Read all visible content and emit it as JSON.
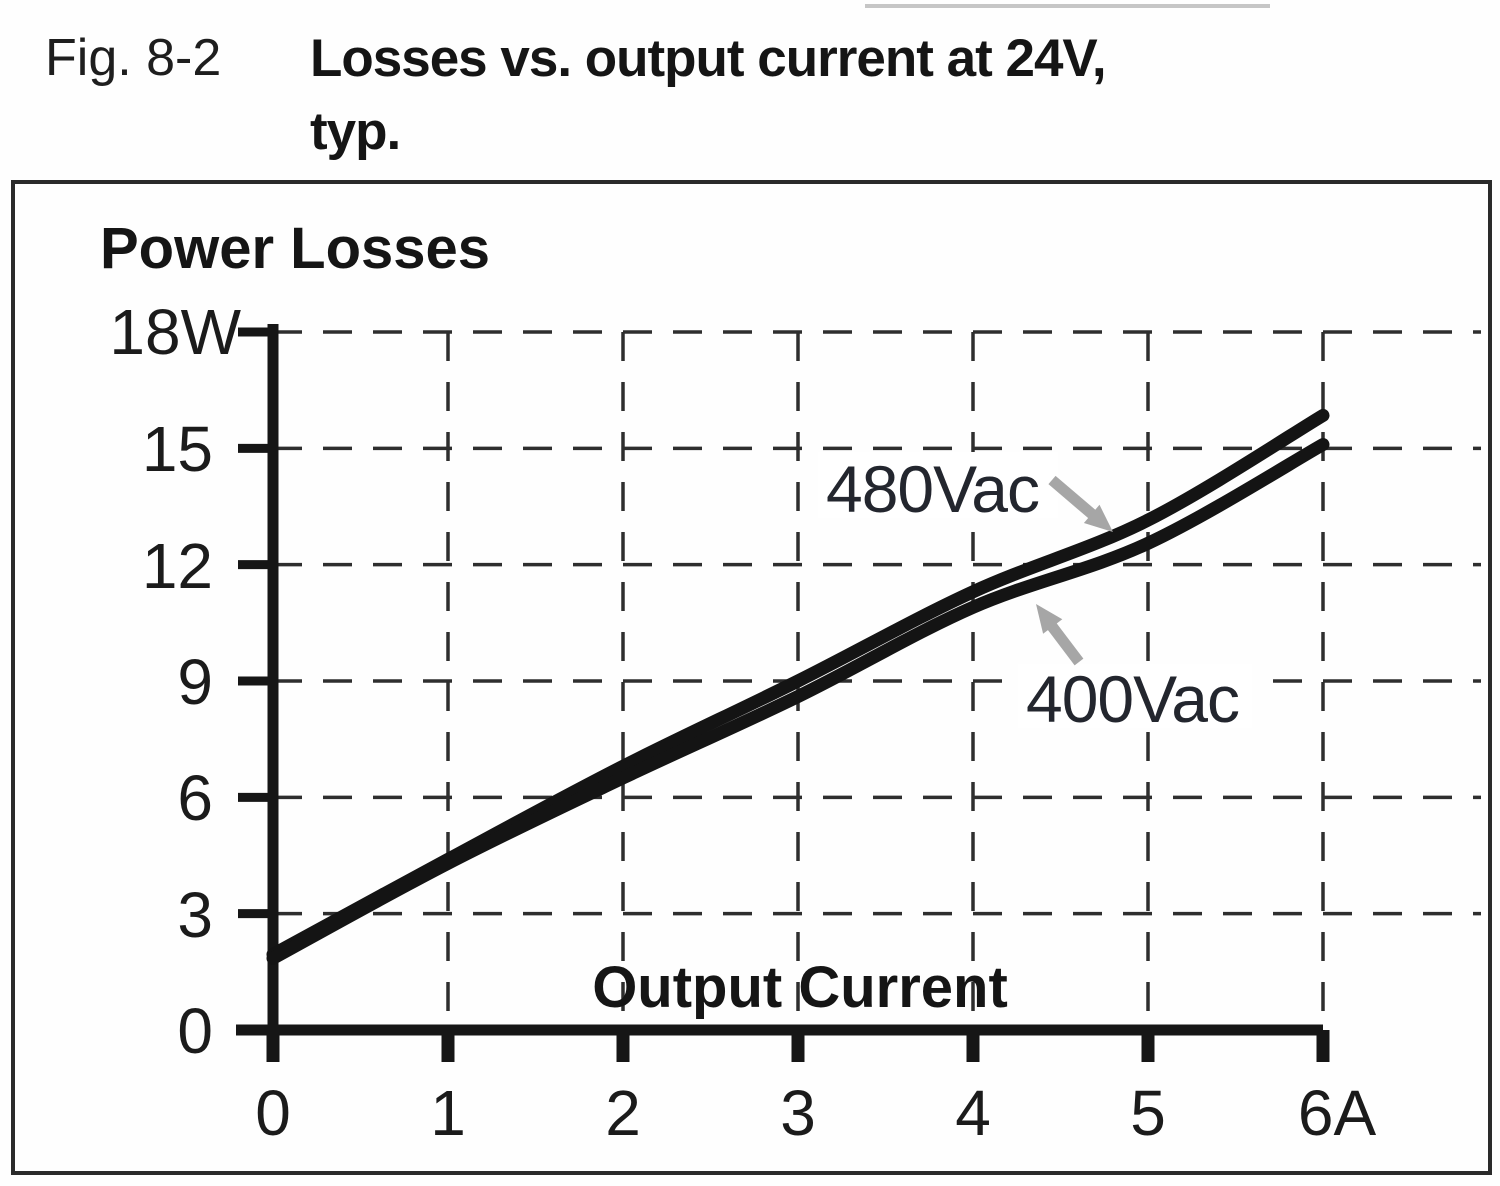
{
  "figure": {
    "label": "Fig. 8-2",
    "title_line1": "Losses vs. output current at 24V,",
    "title_line2": "typ."
  },
  "chart_data": {
    "type": "line",
    "title": "Power Losses",
    "xlabel": "Output Current",
    "x_unit": "A",
    "y_unit": "W",
    "xlim": [
      0,
      6
    ],
    "ylim": [
      0,
      18
    ],
    "x_ticks": [
      0,
      1,
      2,
      3,
      4,
      5,
      6
    ],
    "x_tick_labels": [
      "0",
      "1",
      "2",
      "3",
      "4",
      "5",
      "6A"
    ],
    "y_ticks": [
      0,
      3,
      6,
      9,
      12,
      15,
      18
    ],
    "y_tick_labels": [
      "0",
      "3",
      "6",
      "9",
      "12",
      "15",
      "18W"
    ],
    "grid": "dashed",
    "legend_position": "inline-arrow-annotations",
    "series": [
      {
        "name": "480Vac",
        "x": [
          0,
          1,
          2,
          3,
          4,
          5,
          6
        ],
        "values": [
          1.95,
          4.4,
          6.8,
          9.0,
          11.3,
          13.15,
          15.85
        ]
      },
      {
        "name": "400Vac",
        "x": [
          0,
          1,
          2,
          3,
          4,
          5,
          6
        ],
        "values": [
          1.85,
          4.3,
          6.5,
          8.6,
          10.9,
          12.55,
          15.1
        ]
      }
    ],
    "colors": {
      "curve": "#141414",
      "grid": "#2e2e2e",
      "arrow": "#a6a6a6",
      "text": "#1b1b1b"
    }
  }
}
